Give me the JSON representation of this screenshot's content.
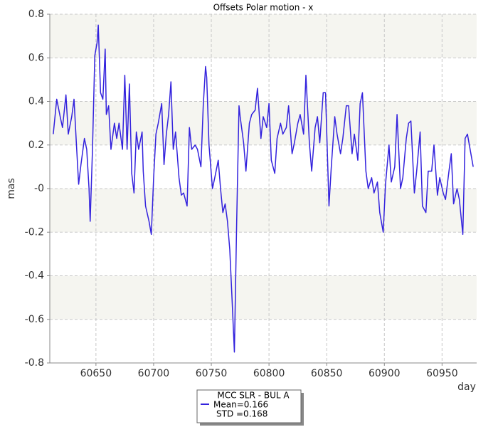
{
  "chart_data": {
    "type": "line",
    "title": "Offsets Polar motion - x",
    "y_label": "mas",
    "x_label": "day",
    "xlim": [
      60610,
      60980
    ],
    "xticks": [
      60650,
      60700,
      60750,
      60800,
      60850,
      60900,
      60950
    ],
    "ylim": [
      -0.8,
      0.8
    ],
    "yticks": [
      0.8,
      0.6,
      0.4,
      0.2,
      {
        "value": 0,
        "label": "-0"
      },
      -0.2,
      -0.4,
      -0.6,
      -0.8
    ],
    "grid": true,
    "legend_notes": [
      "Mean=0.166",
      "STD =0.168"
    ],
    "series": [
      {
        "name": "MCC SLR - BUL A",
        "color": "#3322dd",
        "x": [
          60613,
          60616,
          60619,
          60621,
          60624,
          60626,
          60629,
          60631,
          60633,
          60635,
          60637,
          60640,
          60642,
          60644,
          60645,
          60647,
          60649,
          60651,
          60652,
          60654,
          60656,
          60658,
          60659,
          60661,
          60663,
          60666,
          60668,
          60670,
          60673,
          60675,
          60677,
          60679,
          60681,
          60683,
          60685,
          60687,
          60690,
          60691,
          60693,
          60696,
          60698,
          60700,
          60702,
          60704,
          60707,
          60709,
          60711,
          60713,
          60715,
          60717,
          60719,
          60722,
          60724,
          60726,
          60729,
          60731,
          60733,
          60736,
          60738,
          60741,
          60743,
          60745,
          60746,
          60748,
          60751,
          60753,
          60756,
          60758,
          60760,
          60762,
          60764,
          60766,
          60768,
          60770,
          60772,
          60774,
          60775,
          60778,
          60780,
          60783,
          60785,
          60788,
          60790,
          60793,
          60795,
          60798,
          60800,
          60802,
          60805,
          60807,
          60810,
          60812,
          60815,
          60817,
          60820,
          60822,
          60825,
          60827,
          60830,
          60832,
          60835,
          60837,
          60840,
          60842,
          60844,
          60847,
          60849,
          60852,
          60854,
          60857,
          60859,
          60862,
          60864,
          60867,
          60869,
          60872,
          60874,
          60877,
          60879,
          60881,
          60884,
          60886,
          60889,
          60891,
          60894,
          60896,
          60899,
          60901,
          60904,
          60906,
          60909,
          60911,
          60914,
          60916,
          60919,
          60921,
          60923,
          60926,
          60928,
          60931,
          60933,
          60936,
          60938,
          60941,
          60943,
          60946,
          60948,
          60951,
          60953,
          60956,
          60958,
          60960,
          60963,
          60965,
          60968,
          60970,
          60972,
          60975,
          60977
        ],
        "values": [
          0.25,
          0.41,
          0.33,
          0.28,
          0.43,
          0.25,
          0.33,
          0.41,
          0.21,
          0.02,
          0.11,
          0.23,
          0.18,
          0,
          -0.15,
          0.18,
          0.61,
          0.67,
          0.75,
          0.44,
          0.41,
          0.64,
          0.34,
          0.38,
          0.18,
          0.3,
          0.23,
          0.3,
          0.18,
          0.52,
          0.18,
          0.48,
          0.07,
          -0.02,
          0.26,
          0.18,
          0.26,
          0.08,
          -0.08,
          -0.15,
          -0.21,
          0.05,
          0.25,
          0.3,
          0.39,
          0.11,
          0.25,
          0.34,
          0.49,
          0.18,
          0.26,
          0.05,
          -0.03,
          -0.02,
          -0.08,
          0.28,
          0.18,
          0.2,
          0.18,
          0.1,
          0.38,
          0.56,
          0.51,
          0.2,
          0,
          0.05,
          0.13,
          0,
          -0.11,
          -0.07,
          -0.15,
          -0.28,
          -0.51,
          -0.75,
          -0.15,
          0.38,
          0.33,
          0.21,
          0.08,
          0.3,
          0.34,
          0.36,
          0.46,
          0.23,
          0.33,
          0.28,
          0.39,
          0.13,
          0.07,
          0.23,
          0.3,
          0.25,
          0.28,
          0.38,
          0.16,
          0.21,
          0.3,
          0.34,
          0.25,
          0.52,
          0.21,
          0.08,
          0.28,
          0.33,
          0.21,
          0.44,
          0.44,
          -0.08,
          0.1,
          0.33,
          0.25,
          0.16,
          0.23,
          0.38,
          0.38,
          0.16,
          0.25,
          0.13,
          0.39,
          0.44,
          0.08,
          0,
          0.05,
          -0.02,
          0.03,
          -0.11,
          -0.2,
          0.02,
          0.2,
          0.03,
          0.1,
          0.34,
          0,
          0.05,
          0.23,
          0.3,
          0.31,
          -0.02,
          0.08,
          0.26,
          -0.08,
          -0.11,
          0.08,
          0.08,
          0.2,
          -0.03,
          0.05,
          -0.02,
          -0.05,
          0.08,
          0.16,
          -0.07,
          0,
          -0.05,
          -0.21,
          0.23,
          0.25,
          0.16,
          0.1
        ]
      }
    ]
  }
}
